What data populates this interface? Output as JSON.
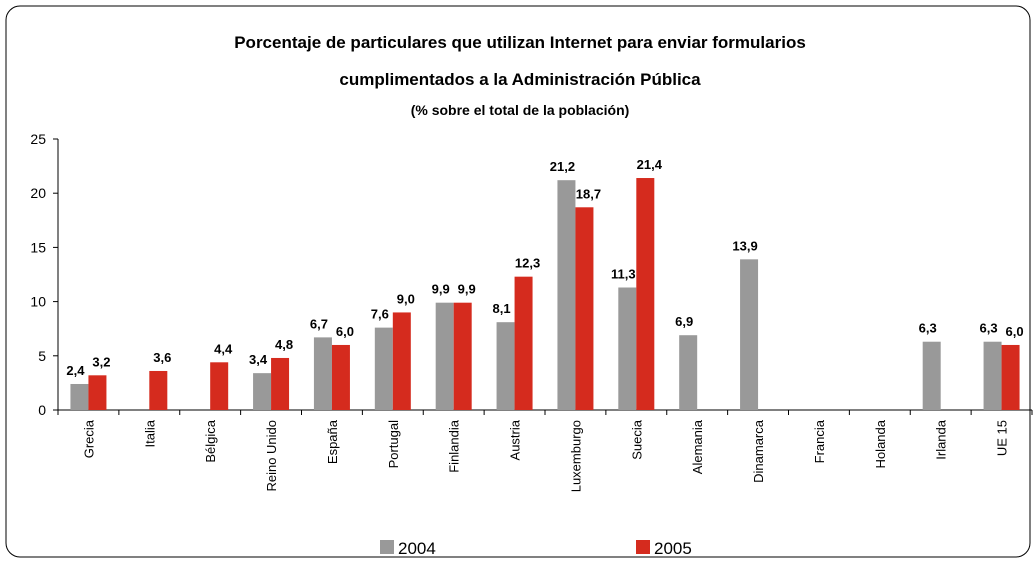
{
  "chart_data": {
    "type": "bar",
    "title": [
      "Porcentaje de particulares que utilizan Internet para enviar formularios",
      "cumplimentados a la Administración Pública"
    ],
    "subtitle": "(% sobre el total de la población)",
    "categories": [
      "Grecia",
      "Italia",
      "Bélgica",
      "Reino Unido",
      "España",
      "Portugal",
      "Finlandia",
      "Austria",
      "Luxemburgo",
      "Suecia",
      "Alemania",
      "Dinamarca",
      "Francia",
      "Holanda",
      "Irlanda",
      "UE 15"
    ],
    "series": [
      {
        "name": "2004",
        "color": "#999999",
        "values": [
          2.4,
          null,
          null,
          3.4,
          6.7,
          7.6,
          9.9,
          8.1,
          21.2,
          11.3,
          6.9,
          13.9,
          null,
          null,
          6.3,
          6.3
        ],
        "value_labels": [
          "2,4",
          null,
          null,
          "3,4",
          "6,7",
          "7,6",
          "9,9",
          "8,1",
          "21,2",
          "11,3",
          "6,9",
          "13,9",
          null,
          null,
          "6,3",
          "6,3"
        ]
      },
      {
        "name": "2005",
        "color": "#d52b1e",
        "values": [
          3.2,
          3.6,
          4.4,
          4.8,
          6.0,
          9.0,
          9.9,
          12.3,
          18.7,
          21.4,
          null,
          null,
          null,
          null,
          null,
          6.0
        ],
        "value_labels": [
          "3,2",
          "3,6",
          "4,4",
          "4,8",
          "6,0",
          "9,0",
          "9,9",
          "12,3",
          "18,7",
          "21,4",
          null,
          null,
          null,
          null,
          null,
          "6,0"
        ]
      }
    ],
    "ylim": [
      0,
      25
    ],
    "yticks": [
      0,
      5,
      10,
      15,
      20,
      25
    ],
    "legend": "bottom"
  }
}
